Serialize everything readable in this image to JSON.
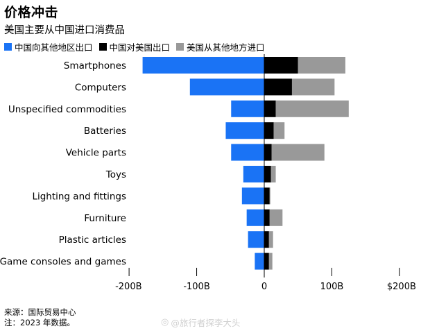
{
  "title": "价格冲击",
  "subtitle": "美国主要从中国进口消费品",
  "colors": {
    "china_to_others": "#1a73f5",
    "china_to_us": "#000000",
    "us_from_others": "#999999",
    "zero_line": "#000000",
    "tick": "#000000"
  },
  "chart_data": {
    "type": "bar",
    "orientation": "horizontal",
    "stacked": true,
    "title": "价格冲击",
    "subtitle": "美国主要从中国进口消费品",
    "categories": [
      "Smartphones",
      "Computers",
      "Unspecified commodities",
      "Batteries",
      "Vehicle parts",
      "Toys",
      "Lighting and fittings",
      "Furniture",
      "Plastic articles",
      "Game consoles and games"
    ],
    "series": [
      {
        "name": "中国向其他地区出口",
        "color": "#1a73f5",
        "direction": "negative",
        "values": [
          -180,
          -110,
          -49,
          -57,
          -49,
          -31,
          -33,
          -26,
          -24,
          -14
        ]
      },
      {
        "name": "中国对美国出口",
        "color": "#000000",
        "direction": "positive",
        "values": [
          50,
          41,
          17,
          14,
          11,
          10,
          8,
          8,
          7,
          7
        ]
      },
      {
        "name": "美国从其他地方进口",
        "color": "#999999",
        "direction": "positive",
        "values": [
          70,
          63,
          108,
          16,
          78,
          7,
          1,
          19,
          6,
          5
        ]
      }
    ],
    "xlim": [
      -200,
      200
    ],
    "xticks": [
      -200,
      -100,
      0,
      100,
      200
    ],
    "xtick_labels": [
      "-200B",
      "-100B",
      "0",
      "100B",
      "$200B"
    ],
    "legend_position": "top-left",
    "grid": false
  },
  "notes": {
    "source": "来源：国际贸易中心",
    "note": "注：2023 年数据。"
  },
  "watermark": {
    "icon": "weibo-icon",
    "text": "@旅行者探李大头"
  }
}
